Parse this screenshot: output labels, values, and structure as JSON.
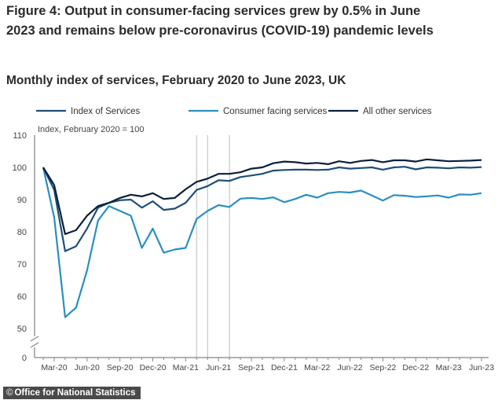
{
  "chart_data": {
    "type": "line",
    "title": "Figure 4: Output in consumer-facing services grew by 0.5% in June 2023 and remains below pre-coronavirus (COVID-19) pandemic levels",
    "subtitle": "Monthly index of services, February 2020 to June 2023, UK",
    "ylabel": "Index, February 2020 = 100",
    "ylim": [
      0,
      110
    ],
    "y_axis_break": true,
    "y_ticks": [
      0,
      50,
      60,
      70,
      80,
      90,
      100,
      110
    ],
    "x_tick_labels": [
      "Mar-20",
      "Jun-20",
      "Sep-20",
      "Dec-20",
      "Mar-21",
      "Jun-21",
      "Sep-21",
      "Dec-21",
      "Mar-22",
      "Jun-22",
      "Sep-22",
      "Dec-22",
      "Mar-23",
      "Jun-23"
    ],
    "grid": false,
    "legend_position": "top",
    "x": [
      "Feb-20",
      "Mar-20",
      "Apr-20",
      "May-20",
      "Jun-20",
      "Jul-20",
      "Aug-20",
      "Sep-20",
      "Oct-20",
      "Nov-20",
      "Dec-20",
      "Jan-21",
      "Feb-21",
      "Mar-21",
      "Apr-21",
      "May-21",
      "Jun-21",
      "Jul-21",
      "Aug-21",
      "Sep-21",
      "Oct-21",
      "Nov-21",
      "Dec-21",
      "Jan-22",
      "Feb-22",
      "Mar-22",
      "Apr-22",
      "May-22",
      "Jun-22",
      "Jul-22",
      "Aug-22",
      "Sep-22",
      "Oct-22",
      "Nov-22",
      "Dec-22",
      "Jan-23",
      "Feb-23",
      "Mar-23",
      "Apr-23",
      "May-23",
      "Jun-23"
    ],
    "lockdown_markers": [
      "Apr-21",
      "May-21",
      "Jul-21"
    ],
    "series": [
      {
        "name": "Index of Services",
        "color": "#1f4e79",
        "values": [
          100,
          93,
          74,
          75.5,
          81,
          87.5,
          89,
          89.8,
          90,
          87.5,
          89.5,
          86.8,
          87.2,
          89,
          93,
          94.2,
          96,
          95.8,
          97,
          97.5,
          98,
          99,
          99.2,
          99.3,
          99.3,
          99.2,
          99.3,
          100,
          99.6,
          99.8,
          100,
          99.3,
          100,
          100.2,
          99.4,
          100,
          99.9,
          99.7,
          100,
          99.9,
          100.1
        ]
      },
      {
        "name": "Consumer facing services",
        "color": "#2a8fc0",
        "values": [
          100,
          84.5,
          53.5,
          56.5,
          68,
          83.5,
          88,
          86.5,
          85,
          75,
          81,
          73.5,
          74.5,
          75,
          84,
          86.5,
          88.3,
          87.7,
          90.3,
          90.5,
          90.2,
          90.7,
          89.2,
          90.2,
          91.5,
          90.6,
          92,
          92.4,
          92.2,
          92.8,
          91.3,
          89.7,
          91.4,
          91.2,
          90.8,
          91,
          91.3,
          90.6,
          91.6,
          91.5,
          92
        ]
      },
      {
        "name": "All other services",
        "color": "#0b1f3a",
        "values": [
          100,
          94.5,
          79.3,
          80.5,
          85,
          88,
          89,
          90.5,
          91.5,
          91,
          92,
          90.2,
          90.5,
          93.2,
          95.5,
          96.5,
          98,
          98,
          98.5,
          99.6,
          100,
          101.3,
          101.8,
          101.6,
          101.2,
          101.4,
          101,
          101.9,
          101.4,
          102,
          102.3,
          101.6,
          102.2,
          102.2,
          101.8,
          102.5,
          102.2,
          101.9,
          102,
          102.1,
          102.3
        ]
      }
    ]
  },
  "footer": {
    "copyright_symbol": "©",
    "credit": "Office for National Statistics"
  }
}
